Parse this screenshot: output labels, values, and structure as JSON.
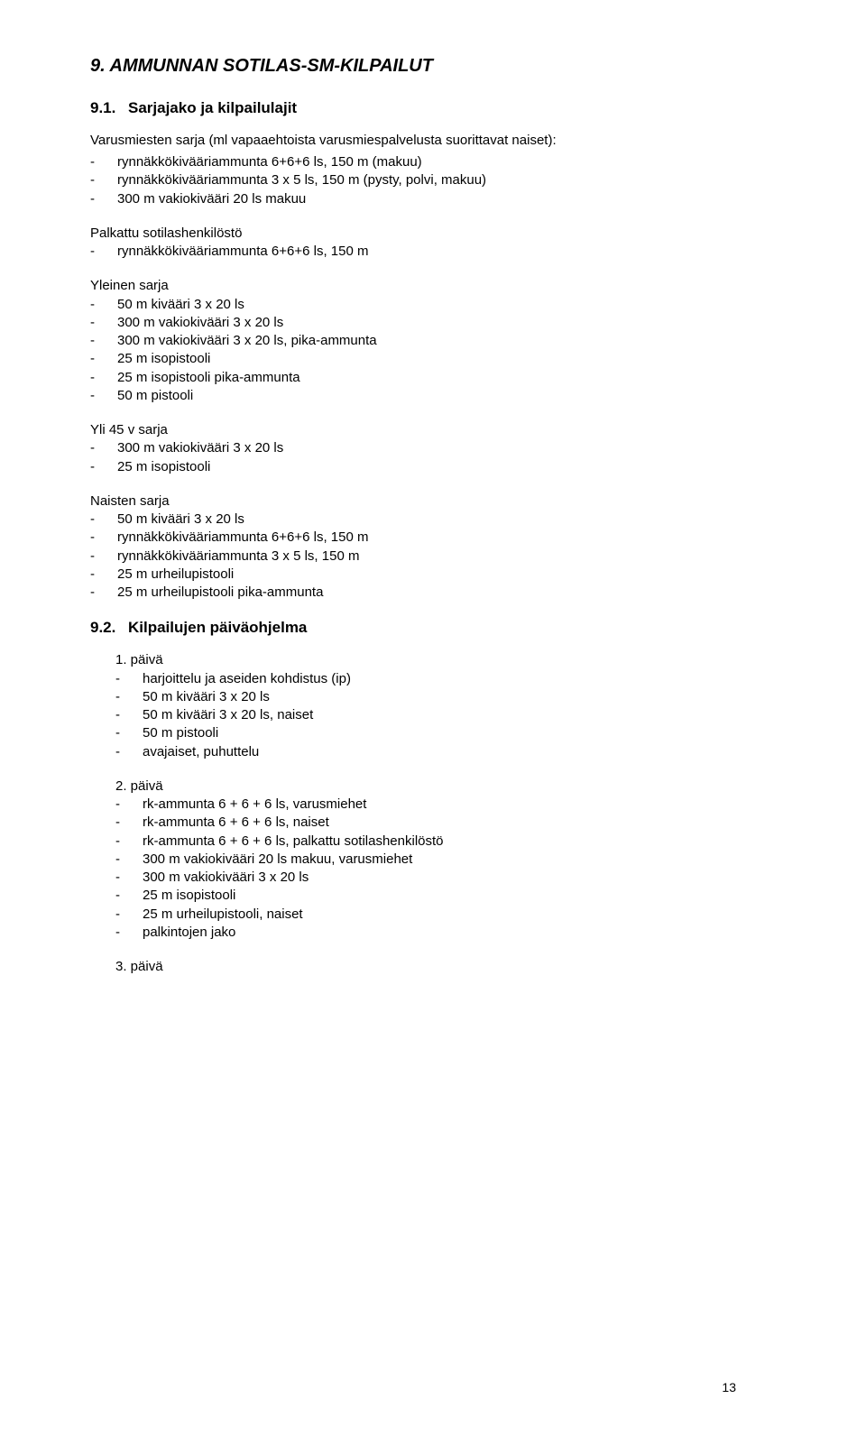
{
  "title": "9. AMMUNNAN SOTILAS-SM-KILPAILUT",
  "section91": {
    "num": "9.1.",
    "heading": "Sarjajako ja kilpailulajit",
    "varusmiesten": {
      "intro": "Varusmiesten sarja (ml vapaaehtoista varusmiespalvelusta suorittavat naiset):",
      "items": [
        "rynnäkkökivääriammunta 6+6+6 ls, 150 m (makuu)",
        "rynnäkkökivääriammunta 3 x 5 ls, 150 m (pysty, polvi, makuu)",
        "300 m vakiokivääri 20 ls makuu"
      ]
    },
    "palkattu": {
      "label": "Palkattu sotilashenkilöstö",
      "items": [
        "rynnäkkökivääriammunta 6+6+6 ls, 150 m"
      ]
    },
    "yleinen": {
      "label": "Yleinen sarja",
      "items": [
        "50 m kivääri 3 x 20 ls",
        "300 m vakiokivääri 3 x 20 ls",
        "300 m vakiokivääri 3 x 20 ls, pika-ammunta",
        "25 m isopistooli",
        "25 m isopistooli pika-ammunta",
        "50 m pistooli"
      ]
    },
    "yli45": {
      "label": "Yli 45 v sarja",
      "items": [
        "300 m vakiokivääri 3 x 20 ls",
        "25 m isopistooli"
      ]
    },
    "naisten": {
      "label": "Naisten sarja",
      "items": [
        "50 m kivääri 3 x 20 ls",
        "rynnäkkökivääriammunta 6+6+6 ls, 150 m",
        "rynnäkkökivääriammunta 3 x 5 ls, 150 m",
        "25 m urheilupistooli",
        "25 m urheilupistooli pika-ammunta"
      ]
    }
  },
  "section92": {
    "num": "9.2.",
    "heading": "Kilpailujen päiväohjelma",
    "paiva1": {
      "label": "1. päivä",
      "items": [
        "harjoittelu ja aseiden kohdistus (ip)",
        "50 m kivääri 3 x 20 ls",
        "50 m kivääri 3 x 20 ls, naiset",
        "50 m pistooli",
        "avajaiset, puhuttelu"
      ]
    },
    "paiva2": {
      "label": "2. päivä",
      "items": [
        "rk-ammunta 6 + 6 + 6 ls, varusmiehet",
        "rk-ammunta 6 + 6 + 6 ls, naiset",
        "rk-ammunta 6 + 6 + 6 ls, palkattu sotilashenkilöstö",
        "300 m vakiokivääri 20 ls makuu, varusmiehet",
        "300 m vakiokivääri 3 x 20 ls",
        "25 m isopistooli",
        "25 m urheilupistooli, naiset",
        "palkintojen jako"
      ]
    },
    "paiva3": {
      "label": "3. päivä"
    }
  },
  "pageNumber": "13"
}
